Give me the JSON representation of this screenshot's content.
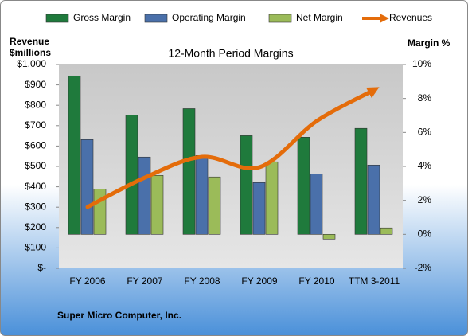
{
  "chart_data": {
    "type": "combo",
    "title": "12-Month Period Margins",
    "y_label_lines": [
      "Revenue",
      "$millions"
    ],
    "y2_label": "Margin %",
    "footer": "Super Micro Computer, Inc.",
    "categories": [
      "FY 2006",
      "FY 2007",
      "FY 2008",
      "FY 2009",
      "FY 2010",
      "TTM 3-2011"
    ],
    "series": [
      {
        "name": "Gross Margin",
        "type": "bar",
        "axis": "y2",
        "color": "#1f7a3c",
        "values": [
          9.33,
          7.03,
          7.4,
          5.81,
          5.72,
          6.24
        ]
      },
      {
        "name": "Operating Margin",
        "type": "bar",
        "axis": "y2",
        "color": "#4a70aa",
        "values": [
          5.58,
          4.55,
          4.64,
          3.05,
          3.56,
          4.08
        ]
      },
      {
        "name": "Net Margin",
        "type": "bar",
        "axis": "y2",
        "color": "#9bbb59",
        "values": [
          2.67,
          3.47,
          3.38,
          4.27,
          -0.28,
          0.38
        ]
      },
      {
        "name": "Revenues",
        "type": "line",
        "color": "#e46c0a",
        "values": [
          301,
          445,
          547,
          496,
          723,
          875
        ]
      }
    ],
    "ylim": [
      0,
      1000
    ],
    "yticks": [
      {
        "value": 0,
        "label": "$-"
      },
      {
        "value": 100,
        "label": "$100"
      },
      {
        "value": 200,
        "label": "$200"
      },
      {
        "value": 300,
        "label": "$300"
      },
      {
        "value": 400,
        "label": "$400"
      },
      {
        "value": 500,
        "label": "$500"
      },
      {
        "value": 600,
        "label": "$600"
      },
      {
        "value": 700,
        "label": "$700"
      },
      {
        "value": 800,
        "label": "$800"
      },
      {
        "value": 900,
        "label": "$900"
      },
      {
        "value": 1000,
        "label": "$1,000"
      }
    ],
    "y2lim": [
      -2,
      10
    ],
    "y2ticks": [
      {
        "value": -2,
        "label": "-2%"
      },
      {
        "value": 0,
        "label": "0%"
      },
      {
        "value": 2,
        "label": "2%"
      },
      {
        "value": 4,
        "label": "4%"
      },
      {
        "value": 6,
        "label": "6%"
      },
      {
        "value": 8,
        "label": "8%"
      },
      {
        "value": 10,
        "label": "10%"
      }
    ],
    "grid": false,
    "legend": "top"
  }
}
